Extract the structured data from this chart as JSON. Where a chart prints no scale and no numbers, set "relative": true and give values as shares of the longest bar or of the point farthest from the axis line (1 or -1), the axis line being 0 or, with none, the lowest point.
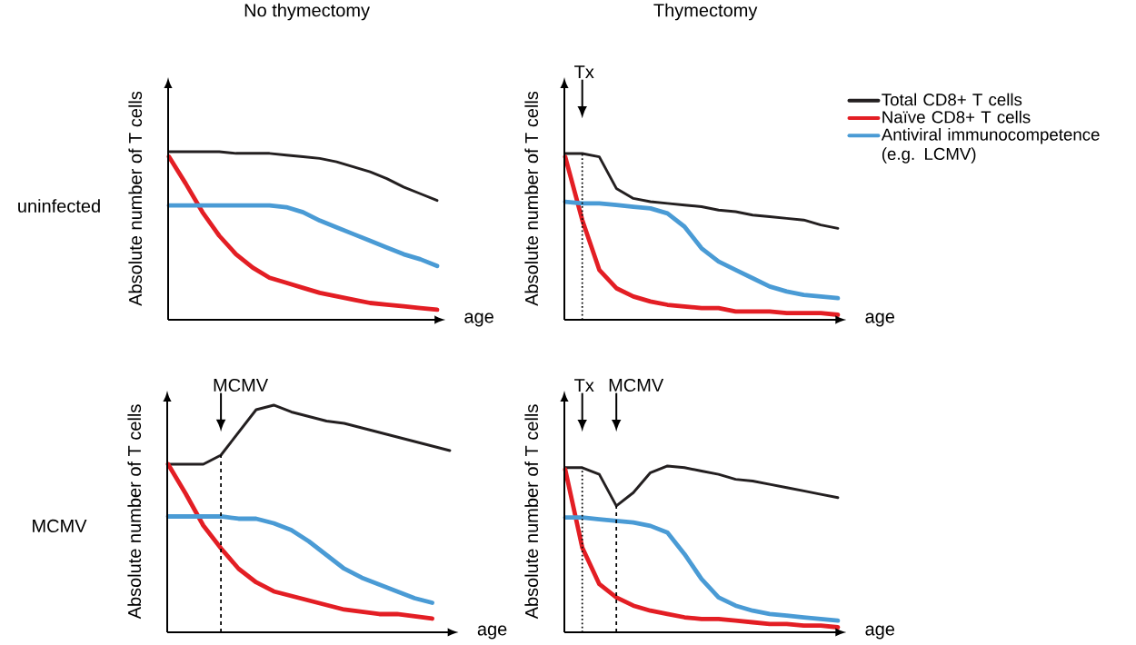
{
  "chart_data": [
    {
      "type": "line",
      "relative": true,
      "title": "No thymectomy",
      "xlabel": "age",
      "ylabel": "Absolute number of T cells",
      "annotations": [
        "uninfected"
      ],
      "categories": [
        null,
        null,
        null,
        null,
        null,
        null,
        null,
        null,
        null,
        null,
        null,
        null,
        null,
        null,
        null,
        null,
        null
      ],
      "series": [
        {
          "color": "#231f20",
          "values": [
            1.0,
            1.0,
            1.0,
            1.0,
            0.99,
            0.99,
            0.99,
            0.98,
            0.97,
            0.96,
            0.94,
            0.91,
            0.88,
            0.84,
            0.79,
            0.75,
            0.71
          ]
        },
        {
          "color": "#e31e24",
          "values": [
            0.97,
            0.81,
            0.64,
            0.5,
            0.39,
            0.31,
            0.25,
            0.22,
            0.19,
            0.16,
            0.14,
            0.12,
            0.1,
            0.09,
            0.08,
            0.07,
            0.06
          ]
        },
        {
          "color": "#4a9bd5",
          "values": [
            0.68,
            0.68,
            0.68,
            0.68,
            0.68,
            0.68,
            0.68,
            0.67,
            0.64,
            0.59,
            0.55,
            0.51,
            0.47,
            0.43,
            0.39,
            0.36,
            0.32
          ]
        }
      ]
    },
    {
      "type": "line",
      "relative": true,
      "title": "Thymectomy",
      "xlabel": "age",
      "ylabel": "Absolute number of T cells",
      "legend": "right",
      "annotations": [
        "Tx"
      ],
      "categories": [
        null,
        null,
        null,
        null,
        null,
        null,
        null,
        null,
        null,
        null,
        null,
        null,
        null,
        null,
        null,
        null,
        null
      ],
      "series": [
        {
          "name": "Total CD8+ T cells",
          "color": "#231f20",
          "values": [
            1.0,
            1.0,
            0.98,
            0.79,
            0.73,
            0.71,
            0.7,
            0.69,
            0.68,
            0.66,
            0.65,
            0.63,
            0.62,
            0.61,
            0.6,
            0.57,
            0.55
          ]
        },
        {
          "name": "Naïve CD8+ T cells",
          "color": "#e31e24",
          "values": [
            0.98,
            0.6,
            0.3,
            0.19,
            0.14,
            0.11,
            0.09,
            0.08,
            0.07,
            0.07,
            0.05,
            0.05,
            0.05,
            0.04,
            0.04,
            0.04,
            0.03
          ]
        },
        {
          "name": "Antiviral immunocompetence (e.g. LCMV)",
          "color": "#4a9bd5",
          "values": [
            0.71,
            0.7,
            0.7,
            0.69,
            0.68,
            0.67,
            0.64,
            0.56,
            0.43,
            0.35,
            0.3,
            0.25,
            0.2,
            0.17,
            0.15,
            0.14,
            0.13
          ]
        }
      ]
    },
    {
      "type": "line",
      "relative": true,
      "xlabel": "age",
      "ylabel": "Absolute number of T cells",
      "annotations": [
        "MCMV",
        "MCMV"
      ],
      "categories": [
        null,
        null,
        null,
        null,
        null,
        null,
        null,
        null,
        null,
        null,
        null,
        null,
        null,
        null,
        null,
        null,
        null
      ],
      "series": [
        {
          "color": "#231f20",
          "values": [
            0.74,
            0.74,
            0.74,
            0.78,
            0.88,
            0.98,
            1.0,
            0.97,
            0.95,
            0.93,
            0.92,
            0.9,
            0.88,
            0.86,
            0.84,
            0.82,
            0.8
          ]
        },
        {
          "color": "#e31e24",
          "values": [
            0.74,
            0.61,
            0.47,
            0.37,
            0.28,
            0.22,
            0.18,
            0.16,
            0.14,
            0.12,
            0.1,
            0.09,
            0.08,
            0.08,
            0.07,
            0.06,
            null
          ]
        },
        {
          "color": "#4a9bd5",
          "values": [
            0.51,
            0.51,
            0.51,
            0.51,
            0.5,
            0.5,
            0.48,
            0.45,
            0.4,
            0.34,
            0.28,
            0.24,
            0.21,
            0.18,
            0.15,
            0.13,
            null
          ]
        }
      ]
    },
    {
      "type": "line",
      "relative": true,
      "xlabel": "age",
      "ylabel": "Absolute number of T cells",
      "annotations": [
        "Tx",
        "MCMV"
      ],
      "categories": [
        null,
        null,
        null,
        null,
        null,
        null,
        null,
        null,
        null,
        null,
        null,
        null,
        null,
        null,
        null,
        null,
        null
      ],
      "series": [
        {
          "color": "#231f20",
          "values": [
            0.99,
            0.99,
            0.95,
            0.76,
            0.84,
            0.96,
            1.0,
            0.99,
            0.97,
            0.95,
            0.92,
            0.91,
            0.89,
            0.87,
            0.85,
            0.83,
            0.81
          ]
        },
        {
          "color": "#e31e24",
          "values": [
            0.98,
            0.51,
            0.29,
            0.21,
            0.16,
            0.13,
            0.11,
            0.09,
            0.08,
            0.08,
            0.07,
            0.06,
            0.05,
            0.05,
            0.04,
            0.04,
            0.03
          ]
        },
        {
          "color": "#4a9bd5",
          "values": [
            0.69,
            0.69,
            0.68,
            0.67,
            0.66,
            0.64,
            0.6,
            0.47,
            0.32,
            0.21,
            0.16,
            0.13,
            0.11,
            0.1,
            0.09,
            0.08,
            0.07
          ]
        }
      ]
    }
  ]
}
